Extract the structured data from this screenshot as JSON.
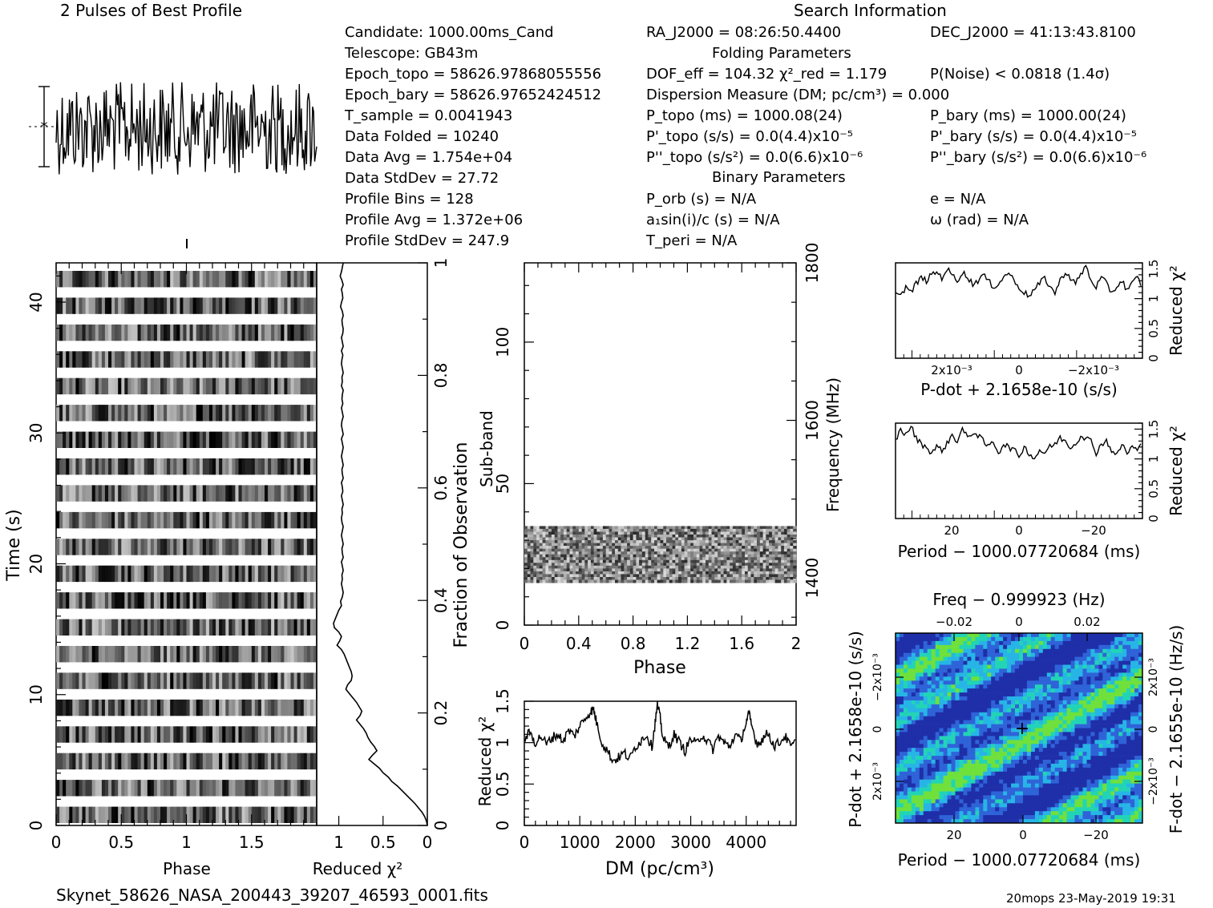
{
  "header": {
    "pulses_title": "2 Pulses of Best Profile",
    "search_title": "Search Information",
    "folding_title": "Folding Parameters",
    "binary_title": "Binary Parameters"
  },
  "info_left": [
    "Candidate:  1000.00ms_Cand",
    "Telescope:  GB43m",
    "Epoch_topo = 58626.97868055556",
    "Epoch_bary = 58626.97652424512",
    "T_sample        =  0.0041943",
    "Data Folded     =  10240",
    "Data Avg        =  1.754e+04",
    "Data StdDev     =  27.72",
    "Profile Bins    =  128",
    "Profile Avg     =  1.372e+06",
    "Profile StdDev  =  247.9"
  ],
  "info_mid": [
    "RA_J2000 = 08:26:50.4400",
    "DOF_eff = 104.32   χ²_red = 1.179",
    "Dispersion Measure (DM; pc/cm³) = 0.000",
    "P_topo (ms) =  1000.08(24)",
    "P'_topo (s/s) = 0.0(4.4)x10⁻⁵",
    "P''_topo (s/s²) = 0.0(6.6)x10⁻⁶",
    "P_orb (s) = N/A",
    "a₁sin(i)/c (s) = N/A",
    "T_peri = N/A"
  ],
  "info_right": [
    "DEC_J2000 = 41:13:43.8100",
    "P(Noise) < 0.0818  (1.4σ)",
    "P_bary (ms) =  1000.00(24)",
    "P'_bary (s/s) = 0.0(4.4)x10⁻⁵",
    "P''_bary (s/s²) = 0.0(6.6)x10⁻⁶",
    "e = N/A",
    "ω (rad) = N/A"
  ],
  "footer": {
    "filename": "Skynet_58626_NASA_200443_39207_46593_0001.fits",
    "stamp": "20mops 23-May-2019 19:31"
  },
  "chart_data": [
    {
      "type": "line",
      "name": "profile",
      "title": "2 Pulses of Best Profile",
      "xlim": [
        0,
        2
      ],
      "bins_per_pulse": 128,
      "profile_avg": 1372000,
      "profile_std": 247.9
    },
    {
      "type": "heatmap",
      "name": "time-phase",
      "xlabel": "Phase",
      "ylabel": "Time (s)",
      "xlim": [
        0,
        2
      ],
      "ylim": [
        0,
        43
      ],
      "xticks": [
        "0",
        "0.5",
        "1",
        "1.5"
      ],
      "yticks": [
        "0",
        "10",
        "20",
        "30",
        "40"
      ]
    },
    {
      "type": "line",
      "name": "time-chi2",
      "xlabel": "Reduced χ²",
      "ylabel": "Fraction of Observation",
      "xticks": [
        "1",
        "0.5",
        "0"
      ],
      "yticks": [
        "0",
        "0.2",
        "0.4",
        "0.6",
        "0.8",
        "1"
      ],
      "values": [
        0.95,
        0.96,
        0.97,
        0.985,
        0.965,
        0.95,
        0.97,
        0.96,
        0.955,
        0.97,
        0.98,
        0.96,
        0.95,
        0.965,
        0.96,
        0.95,
        0.955,
        0.97,
        0.96,
        0.95,
        0.97,
        0.955,
        0.965,
        0.97,
        0.96,
        0.95,
        0.965,
        0.96,
        0.97,
        0.95,
        0.96,
        0.965,
        0.955,
        0.97,
        0.96,
        0.95,
        0.965,
        0.97,
        0.96,
        0.95,
        0.97,
        0.96,
        0.95,
        0.96,
        0.97,
        0.96,
        0.95,
        0.965,
        0.96,
        0.95,
        0.97,
        0.96,
        0.955,
        0.97,
        0.96,
        0.95,
        0.965,
        0.96,
        0.97,
        0.965,
        0.95,
        0.96,
        0.97,
        0.96,
        0.95,
        0.965,
        0.96,
        0.95,
        0.97,
        0.96,
        0.95,
        0.965,
        0.96,
        0.97,
        0.96,
        0.95,
        0.96,
        0.98,
        0.97,
        1.0,
        1.02,
        1.04,
        1.06,
        1.05,
        1.0,
        0.97,
        0.99,
        1.02,
        0.97,
        0.94,
        0.92,
        0.9,
        0.88,
        0.86,
        0.85,
        0.86,
        0.9,
        0.92,
        0.88,
        0.84,
        0.8,
        0.77,
        0.74,
        0.76,
        0.8,
        0.76,
        0.72,
        0.69,
        0.67,
        0.64,
        0.6,
        0.57,
        0.62,
        0.66,
        0.6,
        0.54,
        0.5,
        0.44,
        0.4,
        0.34,
        0.29,
        0.24,
        0.19,
        0.14,
        0.1,
        0.06,
        0.03,
        0.01,
        0.0
      ]
    },
    {
      "type": "heatmap",
      "name": "subband-phase",
      "xlabel": "Phase",
      "ylabel": "Sub-band",
      "y2label": "Frequency (MHz)",
      "xlim": [
        0,
        2
      ],
      "ylim": [
        0,
        128
      ],
      "filled_subbands": [
        15,
        35
      ],
      "xticks": [
        "0",
        "0.4",
        "0.8",
        "1.2",
        "1.6",
        "2"
      ],
      "yticks": [
        "0",
        "50",
        "100"
      ],
      "y2ticks": [
        "1400",
        "1600",
        "1800"
      ]
    },
    {
      "type": "line",
      "name": "dm-chi2",
      "xlabel": "DM (pc/cm³)",
      "ylabel": "Reduced χ²",
      "xlim": [
        0,
        4900
      ],
      "ylim": [
        0,
        1.5
      ],
      "xticks": [
        "0",
        "1000",
        "2000",
        "3000",
        "4000"
      ],
      "yticks": [
        "0",
        "0.5",
        "1",
        "1.5"
      ],
      "x": [
        0,
        100,
        200,
        300,
        400,
        500,
        600,
        700,
        800,
        900,
        1000,
        1100,
        1200,
        1250,
        1300,
        1400,
        1500,
        1600,
        1700,
        1800,
        1900,
        2000,
        2100,
        2200,
        2300,
        2350,
        2400,
        2450,
        2500,
        2600,
        2700,
        2800,
        2900,
        3000,
        3100,
        3200,
        3300,
        3400,
        3500,
        3600,
        3700,
        3800,
        3900,
        4000,
        4050,
        4100,
        4200,
        4300,
        4400,
        4500,
        4600,
        4700,
        4800,
        4900
      ],
      "values": [
        1.05,
        1.12,
        1.0,
        1.08,
        0.98,
        1.06,
        1.1,
        1.02,
        1.15,
        1.08,
        1.2,
        1.3,
        1.38,
        1.4,
        1.25,
        1.0,
        0.9,
        0.78,
        0.82,
        0.88,
        0.8,
        0.95,
        1.02,
        1.1,
        0.95,
        1.2,
        1.45,
        1.3,
        1.05,
        0.95,
        1.1,
        1.0,
        0.9,
        1.05,
        0.98,
        1.1,
        1.02,
        0.92,
        1.08,
        1.0,
        0.95,
        1.1,
        1.02,
        1.25,
        1.35,
        1.2,
        0.98,
        1.05,
        1.12,
        0.96,
        1.0,
        1.08,
        0.95,
        1.0
      ]
    },
    {
      "type": "line",
      "name": "pdot-chi2",
      "xlabel": "P-dot + 2.1658e-10 (s/s)",
      "ylabel": "Reduced χ²",
      "xticks": [
        "2x10⁻³",
        "0",
        "−2x10⁻³"
      ],
      "yticks": [
        "0",
        "0.5",
        "1",
        "1.5"
      ],
      "ylim": [
        0,
        1.6
      ],
      "values": [
        1.15,
        1.05,
        1.2,
        1.1,
        1.25,
        1.35,
        1.3,
        1.4,
        1.45,
        1.35,
        1.5,
        1.4,
        1.3,
        1.45,
        1.35,
        1.25,
        1.3,
        1.4,
        1.3,
        1.2,
        1.25,
        1.35,
        1.45,
        1.3,
        1.2,
        1.1,
        1.05,
        1.15,
        1.25,
        1.35,
        1.2,
        1.1,
        1.3,
        1.45,
        1.35,
        1.25,
        1.4,
        1.55,
        1.3,
        1.2,
        1.35,
        1.25,
        1.1,
        1.2,
        1.3,
        1.15,
        1.25,
        1.35,
        1.2
      ]
    },
    {
      "type": "line",
      "name": "period-chi2",
      "xlabel": "Period − 1000.07720684 (ms)",
      "ylabel": "Reduced χ²",
      "xticks": [
        "20",
        "0",
        "−20"
      ],
      "yticks": [
        "0",
        "0.5",
        "1",
        "1.5"
      ],
      "ylim": [
        0,
        1.6
      ],
      "values": [
        1.3,
        1.5,
        1.4,
        1.55,
        1.35,
        1.25,
        1.2,
        1.1,
        1.2,
        1.15,
        1.25,
        1.4,
        1.3,
        1.5,
        1.35,
        1.45,
        1.4,
        1.3,
        1.2,
        1.3,
        1.1,
        1.25,
        1.2,
        1.15,
        1.05,
        1.2,
        1.1,
        1.0,
        1.15,
        1.1,
        1.2,
        1.25,
        1.35,
        1.3,
        1.2,
        1.25,
        1.4,
        1.35,
        1.3,
        1.1,
        1.25,
        1.3,
        1.15,
        1.05,
        1.25,
        1.1,
        1.2,
        1.15,
        1.25
      ]
    },
    {
      "type": "heatmap",
      "name": "pdot-period",
      "title": "Freq − 0.999923 (Hz)",
      "xlabel": "Period − 1000.07720684 (ms)",
      "ylabel": "P-dot + 2.1658e-10 (s/s)",
      "y2label": "F-dot − 2.1655e-10 (Hz/s)",
      "xticks": [
        "20",
        "0",
        "−20"
      ],
      "x2ticks": [
        "−0.02",
        "0",
        "0.02"
      ],
      "yticks": [
        "−2x10⁻³",
        "0",
        "2x10⁻³"
      ],
      "y2ticks": [
        "2x10⁻³",
        "0",
        "−2x10⁻³"
      ]
    }
  ]
}
